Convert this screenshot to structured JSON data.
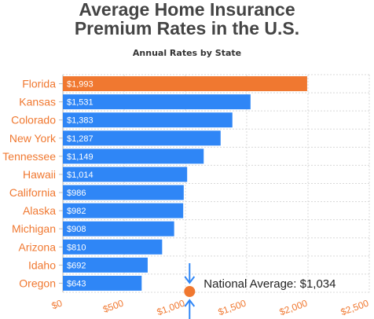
{
  "chart_data": {
    "type": "bar",
    "orientation": "horizontal",
    "title": "Average Home Insurance\nPremium Rates in the U.S.",
    "subtitle": "Annual Rates by State",
    "categories": [
      "Florida",
      "Kansas",
      "Colorado",
      "New York",
      "Tennessee",
      "Hawaii",
      "California",
      "Alaska",
      "Michigan",
      "Arizona",
      "Idaho",
      "Oregon"
    ],
    "values": [
      1993,
      1531,
      1383,
      1287,
      1149,
      1014,
      986,
      982,
      908,
      810,
      692,
      643
    ],
    "value_labels": [
      "$1,993",
      "$1,531",
      "$1,383",
      "$1,287",
      "$1,149",
      "$1,014",
      "$986",
      "$982",
      "$908",
      "$810",
      "$692",
      "$643"
    ],
    "highlight_category": "Florida",
    "xlim": [
      0,
      2500
    ],
    "x_ticks": [
      0,
      500,
      1000,
      1500,
      2000,
      2500
    ],
    "x_tick_labels": [
      "$0",
      "$500",
      "$1,000",
      "$1,500",
      "$2,000",
      "$2,500"
    ],
    "grid": true,
    "reference_line": {
      "value": 1034,
      "label": "National Average: $1,034"
    },
    "colors": {
      "bar": "#2f86f6",
      "highlight": "#f07830",
      "category_label": "#f07830",
      "tick_label": "#f07830",
      "reference_marker": "#f07830",
      "reference_arrows": "#2f86f6",
      "grid": "#d8d8d8"
    }
  }
}
